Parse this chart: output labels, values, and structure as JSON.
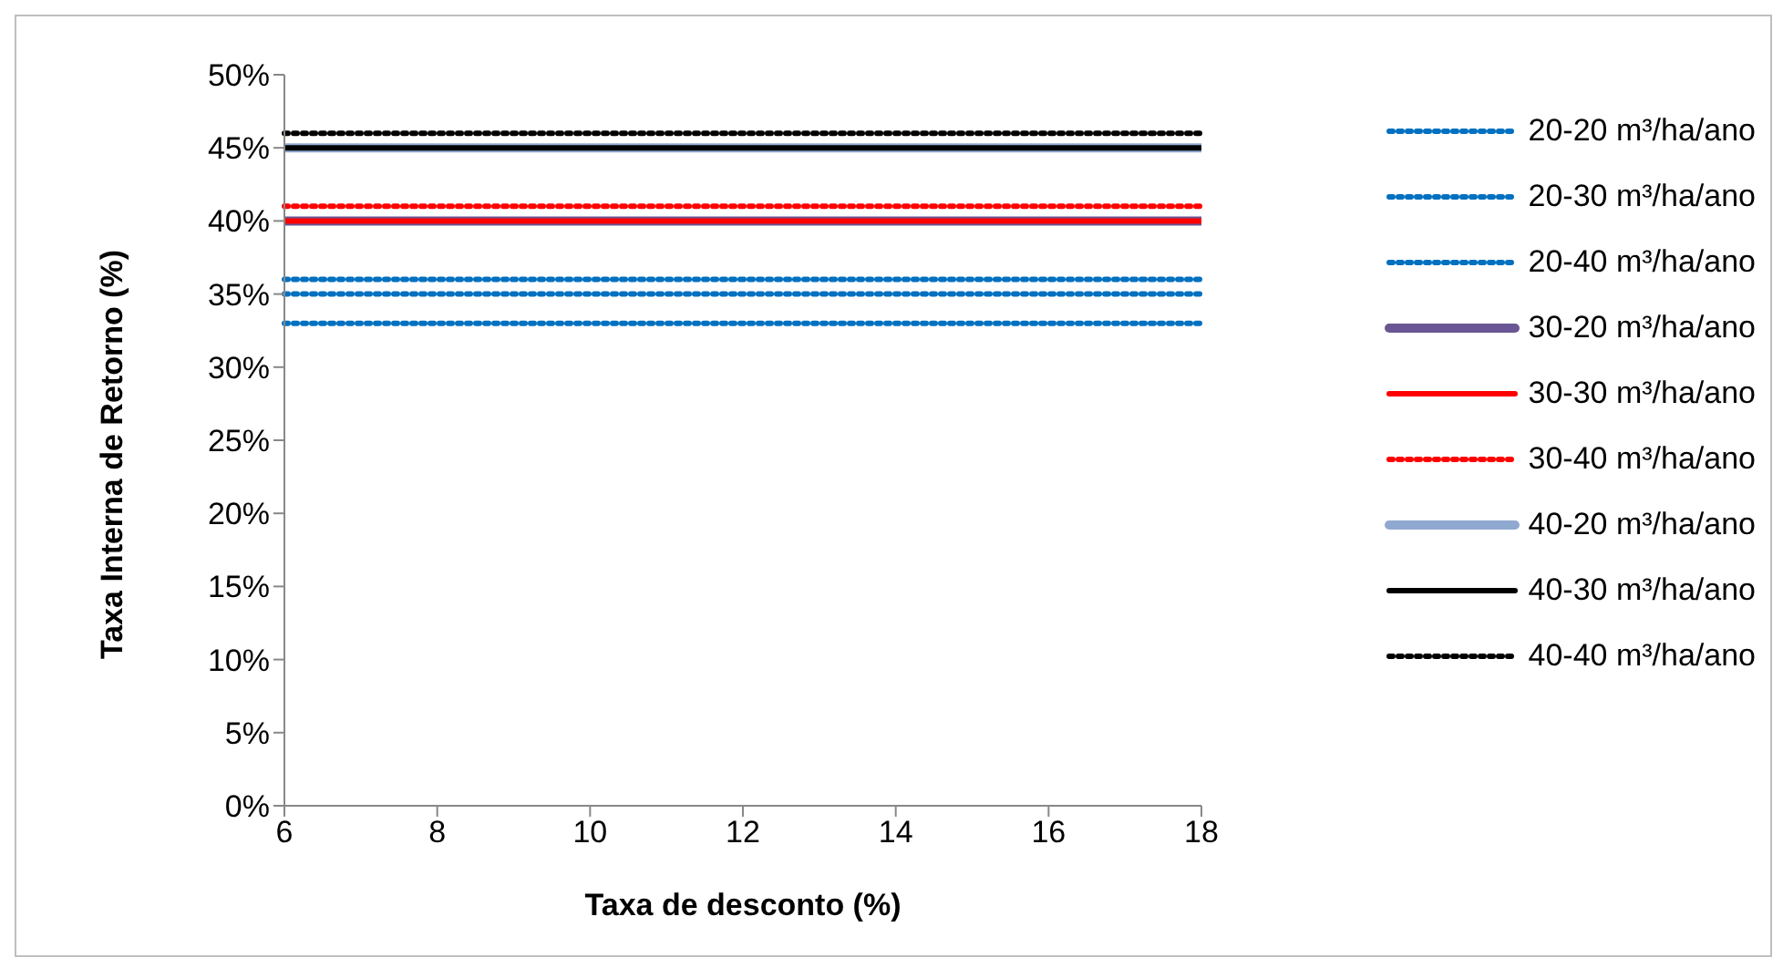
{
  "chart_data": {
    "type": "line",
    "xlabel": "Taxa de desconto (%)",
    "ylabel": "Taxa Interna de Retorno (%)",
    "categories": [
      "6",
      "8",
      "10",
      "12",
      "14",
      "16",
      "18"
    ],
    "ylim": [
      0,
      50
    ],
    "yticks": [
      {
        "value": 0,
        "label": "0%"
      },
      {
        "value": 5,
        "label": "5%"
      },
      {
        "value": 10,
        "label": "10%"
      },
      {
        "value": 15,
        "label": "15%"
      },
      {
        "value": 20,
        "label": "20%"
      },
      {
        "value": 25,
        "label": "25%"
      },
      {
        "value": 30,
        "label": "30%"
      },
      {
        "value": 35,
        "label": "35%"
      },
      {
        "value": 40,
        "label": "40%"
      },
      {
        "value": 45,
        "label": "45%"
      },
      {
        "value": 50,
        "label": "50%"
      }
    ],
    "legend": "right",
    "marker": "none",
    "grid": false,
    "series": [
      {
        "name": "20-20 m³/ha/ano",
        "color": "#0070c0",
        "line_style": "dotted",
        "values": [
          33,
          33,
          33,
          33,
          33,
          33,
          33
        ]
      },
      {
        "name": "20-30 m³/ha/ano",
        "color": "#0070c0",
        "line_style": "dotted",
        "values": [
          35,
          35,
          35,
          35,
          35,
          35,
          35
        ]
      },
      {
        "name": "20-40 m³/ha/ano",
        "color": "#0070c0",
        "line_style": "dotted",
        "values": [
          36,
          36,
          36,
          36,
          36,
          36,
          36
        ]
      },
      {
        "name": "30-20 m³/ha/ano",
        "color": "#6a5694",
        "line_style": "solid",
        "values": [
          40,
          40,
          40,
          40,
          40,
          40,
          40
        ]
      },
      {
        "name": "30-30 m³/ha/ano",
        "color": "#ff0000",
        "line_style": "solid",
        "values": [
          40,
          40,
          40,
          40,
          40,
          40,
          40
        ]
      },
      {
        "name": "30-40 m³/ha/ano",
        "color": "#ff0000",
        "line_style": "dotted",
        "values": [
          41,
          41,
          41,
          41,
          41,
          41,
          41
        ]
      },
      {
        "name": "40-20 m³/ha/ano",
        "color": "#8fa9d0",
        "line_style": "solid",
        "values": [
          45,
          45,
          45,
          45,
          45,
          45,
          45
        ]
      },
      {
        "name": "40-30 m³/ha/ano",
        "color": "#000000",
        "line_style": "solid",
        "values": [
          45,
          45,
          45,
          45,
          45,
          45,
          45
        ]
      },
      {
        "name": "40-40 m³/ha/ano",
        "color": "#000000",
        "line_style": "dotted",
        "values": [
          46,
          46,
          46,
          46,
          46,
          46,
          46
        ]
      }
    ]
  }
}
